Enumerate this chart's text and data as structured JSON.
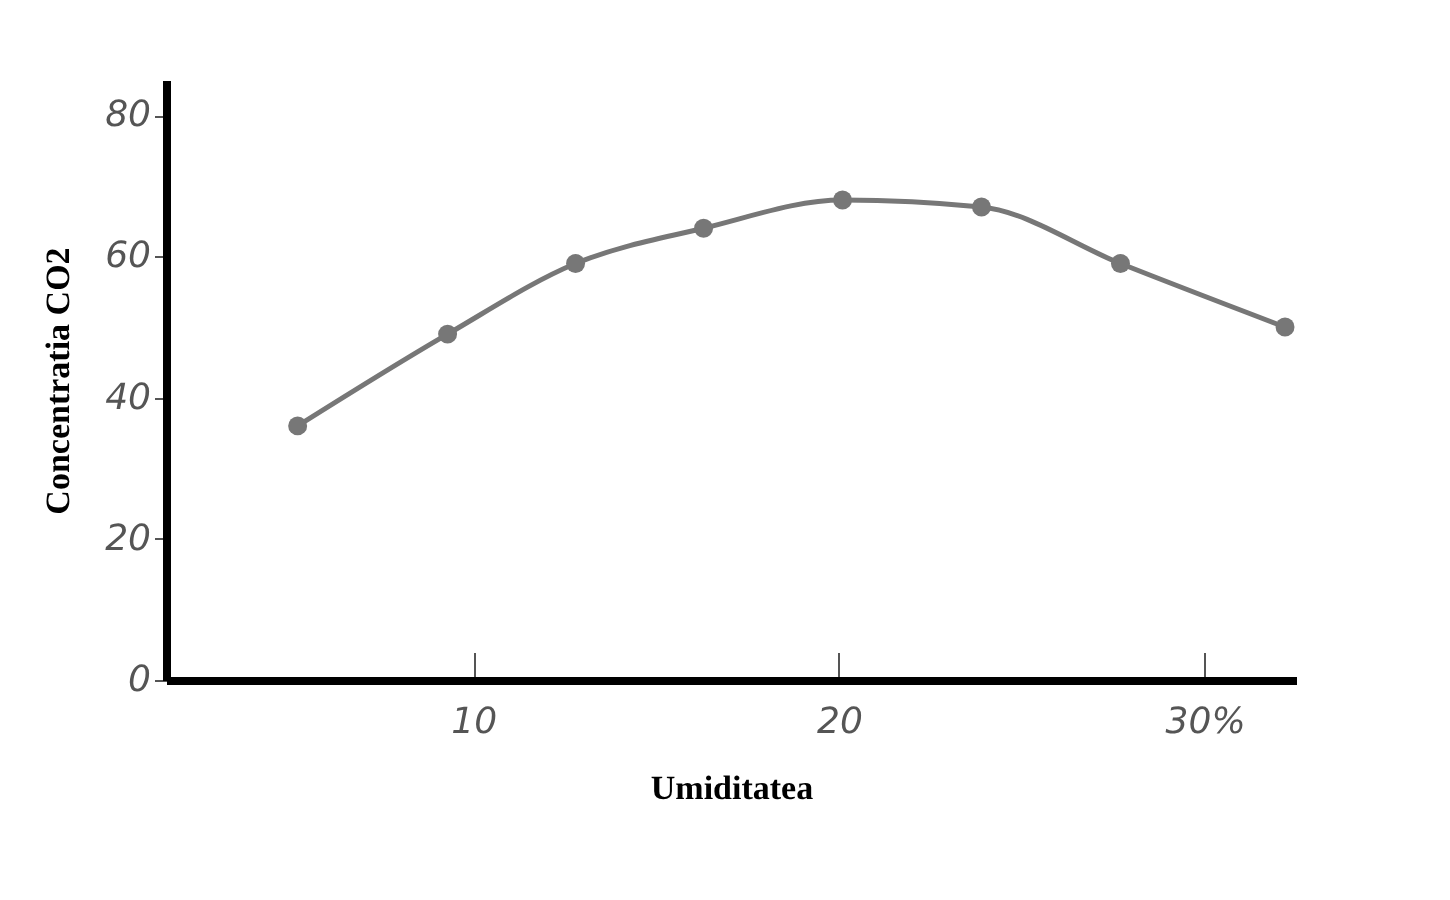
{
  "chart_data": {
    "type": "line",
    "xlabel": "Umiditatea",
    "ylabel": "Concentratia CO2",
    "x": [
      5.2,
      9.3,
      12.8,
      16.3,
      20.1,
      23.9,
      27.7,
      32.2
    ],
    "series": [
      {
        "color": "#777777",
        "values": [
          36,
          49,
          59,
          64,
          68,
          67,
          59,
          50
        ]
      }
    ],
    "xlim": [
      1.6,
      32.5
    ],
    "xticks": [
      10,
      20,
      {
        "value": 30,
        "label": "30%"
      }
    ],
    "ylim": [
      0,
      85
    ],
    "yticks": [
      0,
      20,
      40,
      60,
      80
    ],
    "marker": "circle",
    "line_style": "solid",
    "grid": false,
    "legend": false
  }
}
